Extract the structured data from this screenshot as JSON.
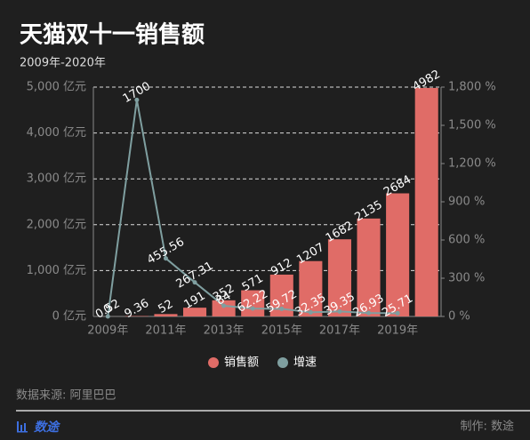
{
  "chart_data": {
    "type": "bar-line",
    "title": "天猫双十一销售额",
    "subtitle": "2009年-2020年",
    "categories": [
      "2009年",
      null,
      "2011年",
      null,
      "2013年",
      null,
      "2015年",
      null,
      "2017年",
      null,
      "2019年",
      null
    ],
    "series": [
      {
        "name": "销售额",
        "type": "bar",
        "color": "#e06c67",
        "values": [
          0.52,
          9.36,
          52,
          191,
          352,
          571,
          912,
          1207,
          1682,
          2135,
          2684,
          4982
        ]
      },
      {
        "name": "增速",
        "type": "line",
        "axis": "y2",
        "color": "#7f9fa0",
        "values": [
          0,
          1700,
          455.56,
          267.31,
          84,
          62.22,
          59.72,
          32.35,
          39.35,
          26.93,
          25.71,
          null
        ]
      }
    ],
    "ylim": [
      0,
      5000
    ],
    "yticks": [
      {
        "value": 0,
        "label": "0 亿元"
      },
      {
        "value": 1000,
        "label": "1,000 亿元"
      },
      {
        "value": 2000,
        "label": "2,000 亿元"
      },
      {
        "value": 3000,
        "label": "3,000 亿元"
      },
      {
        "value": 4000,
        "label": "4,000 亿元"
      },
      {
        "value": 5000,
        "label": "5,000 亿元"
      }
    ],
    "y2lim": [
      0,
      1800
    ],
    "y2ticks": [
      {
        "value": 0,
        "label": "0 %"
      },
      {
        "value": 300,
        "label": "300 %"
      },
      {
        "value": 600,
        "label": "600 %"
      },
      {
        "value": 900,
        "label": "900 %"
      },
      {
        "value": 1200,
        "label": "1,200 %"
      },
      {
        "value": 1500,
        "label": "1,500 %"
      },
      {
        "value": 1800,
        "label": "1,800 %"
      }
    ],
    "grid": true,
    "legend": "bottom",
    "source": "数据来源: 阿里巴巴",
    "brand": "数途",
    "credit": "制作: 数途"
  }
}
